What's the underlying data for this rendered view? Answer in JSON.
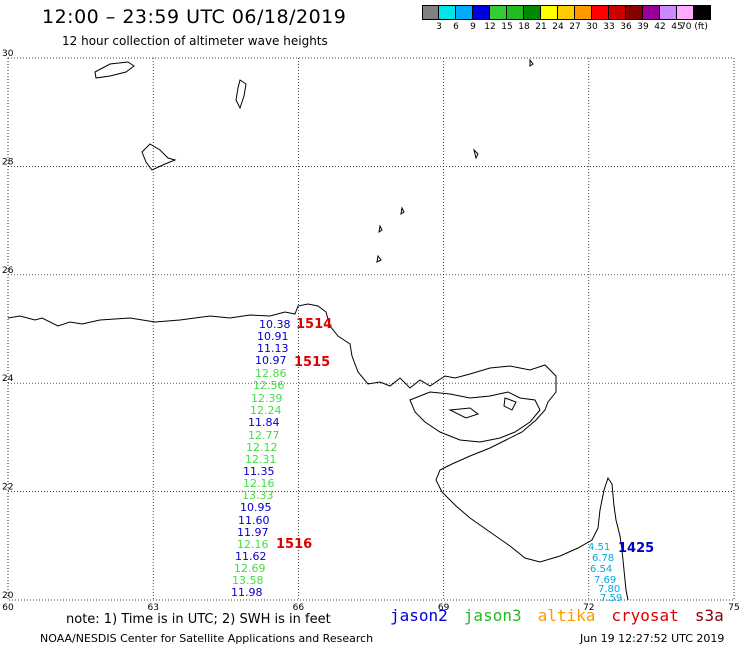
{
  "header": {
    "title": "12:00 – 23:59 UTC 06/18/2019",
    "subtitle": "12 hour collection of altimeter wave heights"
  },
  "color_scale": {
    "labels": [
      "3",
      "6",
      "9",
      "12",
      "15",
      "18",
      "21",
      "24",
      "27",
      "30",
      "33",
      "36",
      "39",
      "42",
      "45",
      "70 (ft)"
    ],
    "colors": [
      "#808080",
      "#00e5e5",
      "#00aaff",
      "#0000dd",
      "#33cc33",
      "#22bb22",
      "#008800",
      "#ffff00",
      "#ffcc00",
      "#ff9900",
      "#ff0000",
      "#cc0000",
      "#880000",
      "#990099",
      "#cc88ff",
      "#ffaaff",
      "#000000"
    ]
  },
  "map": {
    "lat_labels": [
      "30",
      "28",
      "26",
      "24",
      "22",
      "20"
    ],
    "lon_labels": [
      "60",
      "63",
      "66",
      "69",
      "72",
      "75"
    ],
    "lat_values": [
      30,
      28,
      26,
      24,
      22,
      20
    ],
    "lon_values": [
      60,
      63,
      66,
      69,
      72,
      75
    ],
    "labels_shown_on_axis": [
      "30",
      "28",
      "26",
      "24",
      "22",
      "20",
      "60",
      "63",
      "66",
      "69",
      "72",
      "75"
    ]
  },
  "track_labels": {
    "jason2_column": [
      "10.38",
      "10.91",
      "11.13",
      "10.97",
      "11.84",
      "11.35",
      "10.95",
      "11.60",
      "11.97",
      "11.62",
      "11.98"
    ],
    "jason3_column": [
      "12.86",
      "12.56",
      "12.39",
      "12.24",
      "12.77",
      "12.12",
      "12.31",
      "12.16",
      "13.33",
      "12.16",
      "12.69",
      "13.58"
    ],
    "east_track": [
      "4.51",
      "6.78",
      "6.54",
      "7.69",
      "7.80",
      "7.59"
    ]
  },
  "orbit_labels": {
    "o1514": "1514",
    "o1515": "1515",
    "o1516": "1516",
    "o1425": "1425"
  },
  "footer": {
    "note": "note: 1) Time is in UTC; 2) SWH is in feet",
    "agency": "NOAA/NESDIS Center for Satellite Applications and Research",
    "timestamp": "Jun 19 12:27:52 UTC 2019",
    "satellites": [
      {
        "name": "jason2",
        "color": "#0000dd"
      },
      {
        "name": "jason3",
        "color": "#22bb22"
      },
      {
        "name": "altika",
        "color": "#ff9900"
      },
      {
        "name": "cryosat",
        "color": "#dd0000"
      },
      {
        "name": "s3a",
        "color": "#880000"
      }
    ]
  }
}
